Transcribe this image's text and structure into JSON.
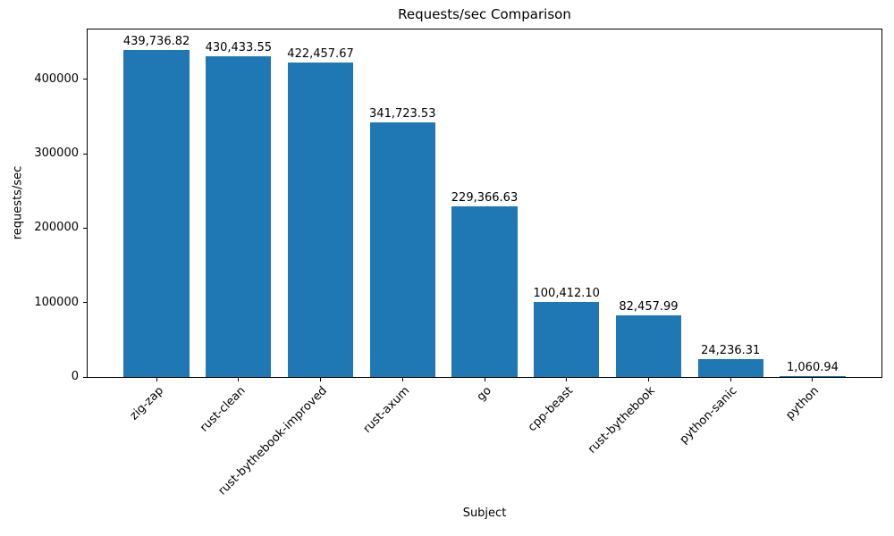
{
  "chart_data": {
    "type": "bar",
    "title": "Requests/sec Comparison",
    "xlabel": "Subject",
    "ylabel": "requests/sec",
    "categories": [
      "zig-zap",
      "rust-clean",
      "rust-bythebook-improved",
      "rust-axum",
      "go",
      "cpp-beast",
      "rust-bythebook",
      "python-sanic",
      "python"
    ],
    "values": [
      439736.82,
      430433.55,
      422457.67,
      341723.53,
      229366.63,
      100412.1,
      82457.99,
      24236.31,
      1060.94
    ],
    "value_labels": [
      "439,736.82",
      "430,433.55",
      "422,457.67",
      "341,723.53",
      "229,366.63",
      "100,412.10",
      "82,457.99",
      "24,236.31",
      "1,060.94"
    ],
    "yticks": [
      0,
      100000,
      200000,
      300000,
      400000
    ],
    "ytick_labels": [
      "0",
      "100000",
      "200000",
      "300000",
      "400000"
    ],
    "ylim": [
      0,
      467000
    ],
    "bar_color": "#1f77b4",
    "grid": false,
    "legend": null
  }
}
